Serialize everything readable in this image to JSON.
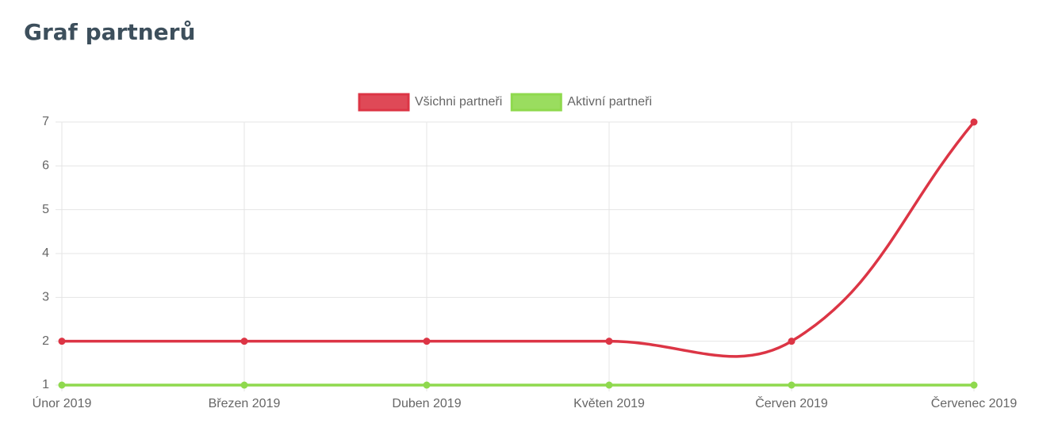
{
  "chart_data": {
    "type": "line",
    "title": "Graf partnerů",
    "categories": [
      "Únor 2019",
      "Březen 2019",
      "Duben 2019",
      "Květen 2019",
      "Červen 2019",
      "Červenec 2019"
    ],
    "series": [
      {
        "name": "Všichni partneři",
        "color": "#dc3545",
        "values": [
          2,
          2,
          2,
          2,
          2,
          7
        ]
      },
      {
        "name": "Aktivní partneři",
        "color": "#8fd94e",
        "values": [
          1,
          1,
          1,
          1,
          1,
          1
        ]
      }
    ],
    "ylim": [
      1,
      7
    ],
    "yticks": [
      1,
      2,
      3,
      4,
      5,
      6,
      7
    ],
    "grid": true,
    "legend": "top"
  }
}
